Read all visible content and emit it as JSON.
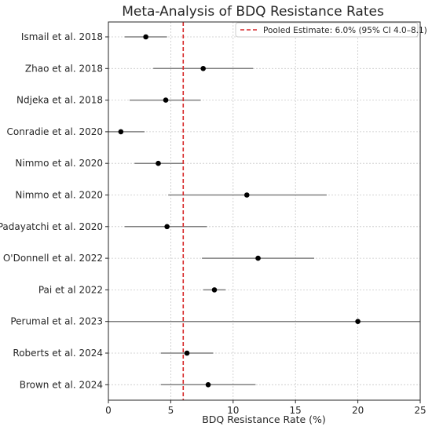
{
  "chart_data": {
    "type": "forest",
    "title": "Meta-Analysis of BDQ Resistance Rates",
    "xlabel": "BDQ Resistance Rate (%)",
    "ylabel": "",
    "xlim": [
      0,
      25
    ],
    "xticks": [
      0,
      5,
      10,
      15,
      20,
      25
    ],
    "grid": true,
    "legend": {
      "placement": "top-right",
      "label": "Pooled Estimate: 6.0% (95% CI 4.0–8.1)"
    },
    "pooled_estimate": 6.0,
    "studies": [
      {
        "label": "Ismail et al. 2018",
        "estimate": 3.0,
        "ci_low": 1.3,
        "ci_high": 4.7
      },
      {
        "label": "Zhao et al. 2018",
        "estimate": 7.6,
        "ci_low": 3.6,
        "ci_high": 11.6
      },
      {
        "label": "Ndjeka et al. 2018",
        "estimate": 4.6,
        "ci_low": 1.7,
        "ci_high": 7.4
      },
      {
        "label": "Conradie et al. 2020",
        "estimate": 1.0,
        "ci_low": 0.0,
        "ci_high": 2.9
      },
      {
        "label": "Nimmo et al. 2020",
        "estimate": 4.0,
        "ci_low": 2.1,
        "ci_high": 6.0
      },
      {
        "label": "Nimmo et al. 2020",
        "estimate": 11.1,
        "ci_low": 4.8,
        "ci_high": 17.5
      },
      {
        "label": "Padayatchi et al. 2020",
        "estimate": 4.7,
        "ci_low": 1.3,
        "ci_high": 7.9
      },
      {
        "label": "O'Donnell et al. 2022",
        "estimate": 12.0,
        "ci_low": 7.5,
        "ci_high": 16.5
      },
      {
        "label": "Pai et al 2022",
        "estimate": 8.5,
        "ci_low": 7.6,
        "ci_high": 9.4
      },
      {
        "label": "Perumal et al. 2023",
        "estimate": 20.0,
        "ci_low": 0.0,
        "ci_high": 25.0
      },
      {
        "label": "Roberts et al. 2024",
        "estimate": 6.3,
        "ci_low": 4.2,
        "ci_high": 8.4
      },
      {
        "label": "Brown et al. 2024",
        "estimate": 8.0,
        "ci_low": 4.2,
        "ci_high": 11.8
      }
    ],
    "colors": {
      "point": "#000000",
      "ci_line": "#808080",
      "pooled_line": "#d62728",
      "grid": "#c8c8c8",
      "axis": "#262626"
    }
  }
}
